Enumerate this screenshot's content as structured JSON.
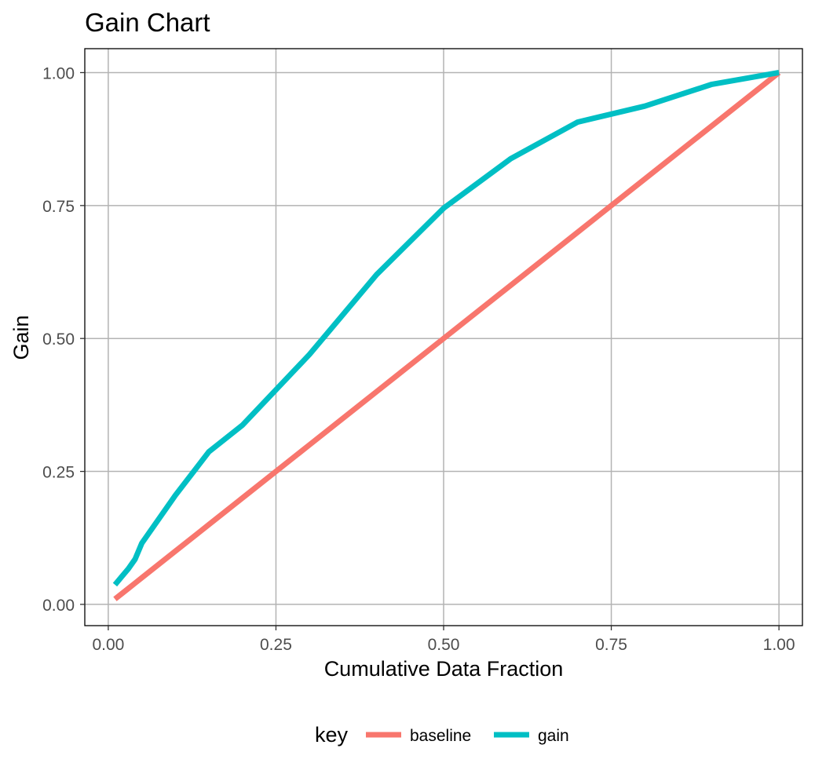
{
  "chart_data": {
    "type": "line",
    "title": "Gain Chart",
    "xlabel": "Cumulative Data Fraction",
    "ylabel": "Gain",
    "xlim": [
      -0.035,
      1.035
    ],
    "ylim": [
      -0.04,
      1.045
    ],
    "x_ticks": [
      0.0,
      0.25,
      0.5,
      0.75,
      1.0
    ],
    "x_tick_labels": [
      "0.00",
      "0.25",
      "0.50",
      "0.75",
      "1.00"
    ],
    "y_ticks": [
      0.0,
      0.25,
      0.5,
      0.75,
      1.0
    ],
    "y_tick_labels": [
      "0.00",
      "0.25",
      "0.50",
      "0.75",
      "1.00"
    ],
    "grid": true,
    "legend": {
      "title": "key",
      "position": "bottom"
    },
    "series": [
      {
        "name": "baseline",
        "color": "#F8766D",
        "x": [
          0.01,
          0.02,
          0.03,
          0.04,
          0.05,
          0.1,
          0.15,
          0.2,
          0.3,
          0.4,
          0.5,
          0.6,
          0.7,
          0.8,
          0.9,
          1.0
        ],
        "y": [
          0.01,
          0.02,
          0.03,
          0.04,
          0.05,
          0.1,
          0.15,
          0.2,
          0.3,
          0.4,
          0.5,
          0.6,
          0.7,
          0.8,
          0.9,
          1.0
        ]
      },
      {
        "name": "gain",
        "color": "#00BFC4",
        "x": [
          0.01,
          0.02,
          0.03,
          0.04,
          0.05,
          0.1,
          0.15,
          0.2,
          0.3,
          0.4,
          0.5,
          0.6,
          0.7,
          0.8,
          0.9,
          1.0
        ],
        "y": [
          0.037,
          0.052,
          0.067,
          0.085,
          0.115,
          0.205,
          0.287,
          0.337,
          0.47,
          0.62,
          0.745,
          0.838,
          0.907,
          0.937,
          0.978,
          1.0
        ]
      }
    ]
  }
}
